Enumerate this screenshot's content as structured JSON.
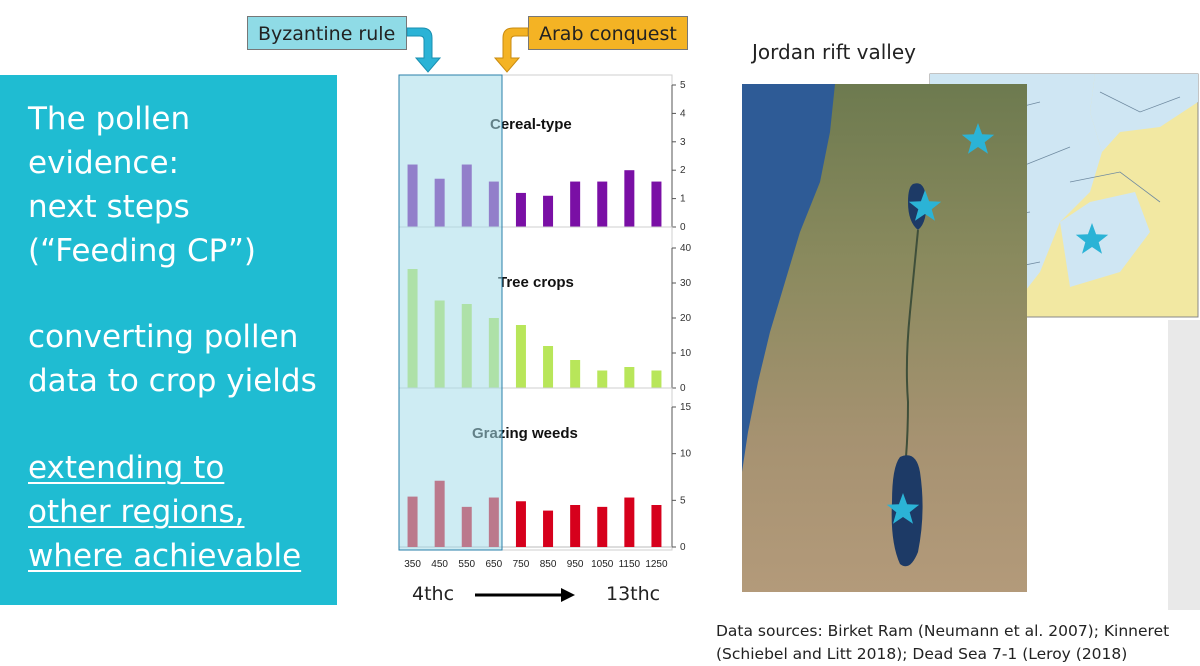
{
  "left_panel": {
    "line1": "The pollen",
    "line2": "evidence:",
    "line3": "next steps",
    "line4": "(“Feeding CP”)",
    "line5": "converting pollen",
    "line6": "data to crop yields",
    "line7": "extending to",
    "line8": "other regions,",
    "line9": "where achievable"
  },
  "callouts": {
    "byzantine": "Byzantine rule",
    "arab": "Arab conquest"
  },
  "map": {
    "title": "Jordan rift valley",
    "site_count": 4
  },
  "sources": {
    "line1": "Data sources: Birket Ram (Neumann et al. 2007); Kinneret",
    "line2": "(Schiebel and Litt 2018); Dead Sea 7-1 (Leroy (2018)"
  },
  "era": {
    "start": "4thc",
    "end": "13thc"
  },
  "colors": {
    "panel": "#1fbcd2",
    "byzantine_highlight": "#a6dcea",
    "cereal": "#7a0fa5",
    "tree": "#b8e65a",
    "grazing": "#d6001c",
    "arab_callout": "#f4b324",
    "sea": "#2e5b96",
    "star": "#2bb3d6"
  },
  "chart_data": [
    {
      "type": "bar",
      "title": "Cereal-type",
      "categories": [
        "350",
        "450",
        "550",
        "650",
        "750",
        "850",
        "950",
        "1050",
        "1150",
        "1250"
      ],
      "values": [
        2.2,
        1.7,
        2.2,
        1.6,
        1.2,
        1.1,
        1.6,
        1.6,
        2.0,
        1.6
      ],
      "ylim": [
        0,
        5
      ],
      "yticks": [
        0,
        1,
        2,
        3,
        4,
        5
      ],
      "axis_side": "right"
    },
    {
      "type": "bar",
      "title": "Tree crops",
      "categories": [
        "350",
        "450",
        "550",
        "650",
        "750",
        "850",
        "950",
        "1050",
        "1150",
        "1250"
      ],
      "values": [
        34,
        25,
        24,
        20,
        18,
        12,
        8,
        5,
        6,
        5
      ],
      "ylim": [
        0,
        40
      ],
      "yticks": [
        0,
        10,
        20,
        30,
        40
      ],
      "axis_side": "right"
    },
    {
      "type": "bar",
      "title": "Grazing weeds",
      "categories": [
        "350",
        "450",
        "550",
        "650",
        "750",
        "850",
        "950",
        "1050",
        "1150",
        "1250"
      ],
      "values": [
        5.4,
        7.1,
        4.3,
        5.3,
        4.9,
        3.9,
        4.5,
        4.3,
        5.3,
        4.5
      ],
      "ylim": [
        0,
        15
      ],
      "yticks": [
        0,
        5,
        10,
        15
      ],
      "axis_side": "right"
    }
  ]
}
